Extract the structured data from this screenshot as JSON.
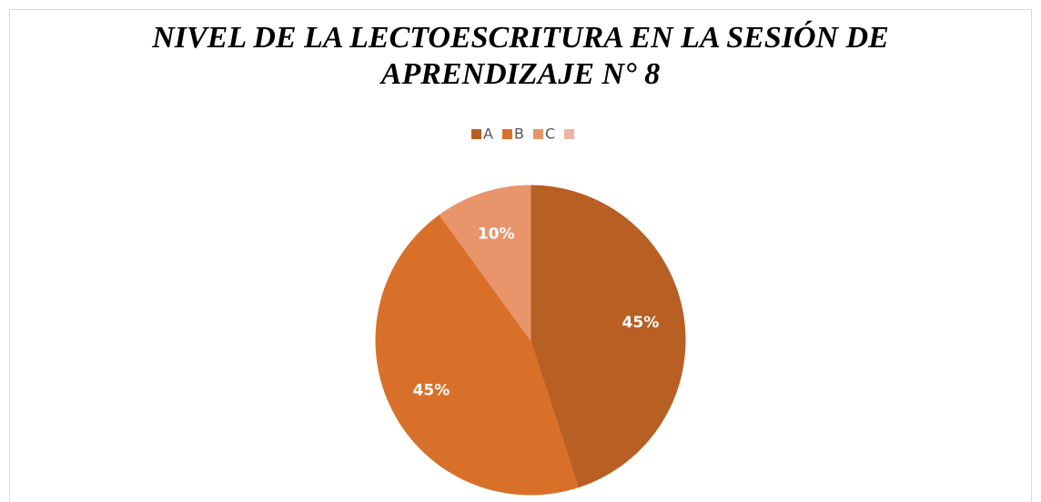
{
  "chart_data": {
    "type": "pie",
    "title": "NIVEL DE LA LECTOESCRITURA EN LA SESIÓN DE",
    "subtitle": "APRENDIZAJE N° 8",
    "categories": [
      "A",
      "B",
      "C",
      null
    ],
    "values": [
      45,
      45,
      10,
      0
    ],
    "value_labels": [
      "45%",
      "45%",
      "10%",
      null
    ],
    "colors": [
      "#b85f24",
      "#d9702a",
      "#e8956c",
      "#ebb5a0"
    ],
    "legend": "top"
  }
}
